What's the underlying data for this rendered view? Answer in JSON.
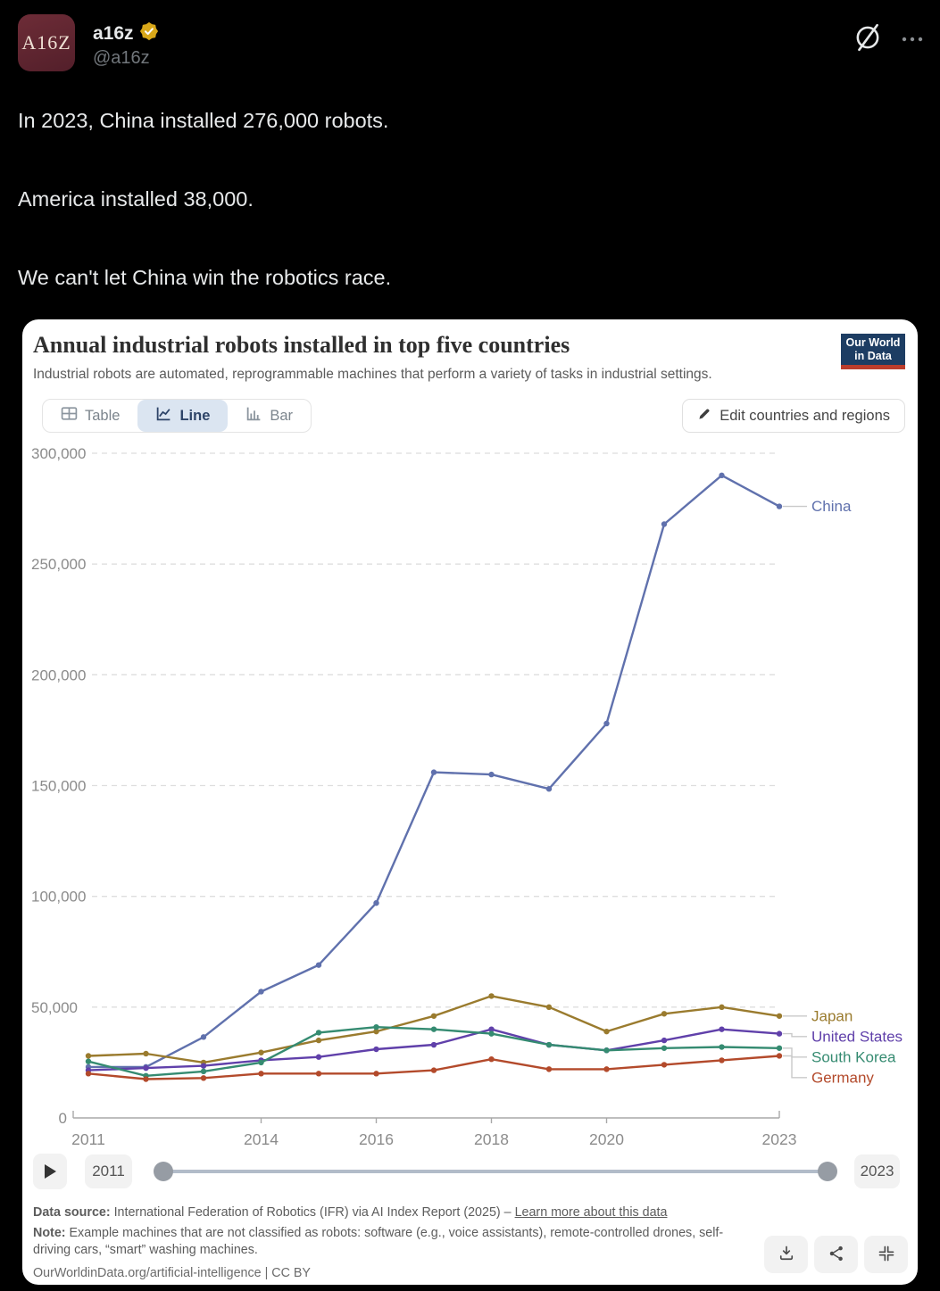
{
  "tweet": {
    "author": "a16z",
    "handle": "@a16z",
    "avatar_text": "A16Z",
    "lines": [
      "In 2023, China installed 276,000 robots.",
      "America installed 38,000.",
      "We can't let China win the robotics race."
    ]
  },
  "chart": {
    "title": "Annual industrial robots installed in top five countries",
    "subtitle": "Industrial robots are automated, reprogrammable machines that perform a variety of tasks in industrial settings.",
    "logo_line1": "Our World",
    "logo_line2": "in Data",
    "tabs": {
      "table": "Table",
      "line": "Line",
      "bar": "Bar"
    },
    "edit_button": "Edit countries and regions",
    "timeline": {
      "start": "2011",
      "end": "2023"
    },
    "footer": {
      "source_label": "Data source:",
      "source_text": " International Federation of Robotics (IFR) via AI Index Report (2025) – ",
      "source_link": "Learn more about this data",
      "note_label": "Note:",
      "note_text": " Example machines that are not classified as robots: software (e.g., voice assistants), remote-controlled drones, self-driving cars, “smart” washing machines.",
      "cc_line": "OurWorldinData.org/artificial-intelligence | CC BY"
    }
  },
  "chart_data": {
    "type": "line",
    "title": "Annual industrial robots installed in top five countries",
    "xlabel": "",
    "ylabel": "",
    "x": [
      2011,
      2012,
      2013,
      2014,
      2015,
      2016,
      2017,
      2018,
      2019,
      2020,
      2021,
      2022,
      2023
    ],
    "xticks": [
      2011,
      2014,
      2016,
      2018,
      2020,
      2023
    ],
    "yticks": [
      0,
      50000,
      100000,
      150000,
      200000,
      250000,
      300000
    ],
    "ylim": [
      0,
      300000
    ],
    "grid": true,
    "legend_position": "right",
    "series": [
      {
        "name": "China",
        "color": "#6071ad",
        "values": [
          23000,
          23000,
          36500,
          57000,
          69000,
          97000,
          156000,
          155000,
          148500,
          178000,
          268000,
          290000,
          276000
        ]
      },
      {
        "name": "Japan",
        "color": "#9a7b2e",
        "values": [
          28000,
          29000,
          25000,
          29500,
          35000,
          39000,
          46000,
          55000,
          50000,
          39000,
          47000,
          50000,
          46000
        ]
      },
      {
        "name": "United States",
        "color": "#6040aa",
        "values": [
          21500,
          22500,
          23500,
          26000,
          27500,
          31000,
          33000,
          40000,
          33000,
          30500,
          35000,
          40000,
          38000
        ]
      },
      {
        "name": "South Korea",
        "color": "#358b71",
        "values": [
          25500,
          19000,
          21000,
          25000,
          38500,
          41000,
          40000,
          38000,
          33000,
          30500,
          31500,
          32000,
          31500
        ]
      },
      {
        "name": "Germany",
        "color": "#b34a2b",
        "values": [
          20000,
          17500,
          18000,
          20000,
          20000,
          20000,
          21500,
          26500,
          22000,
          22000,
          24000,
          26000,
          28000
        ]
      }
    ]
  }
}
